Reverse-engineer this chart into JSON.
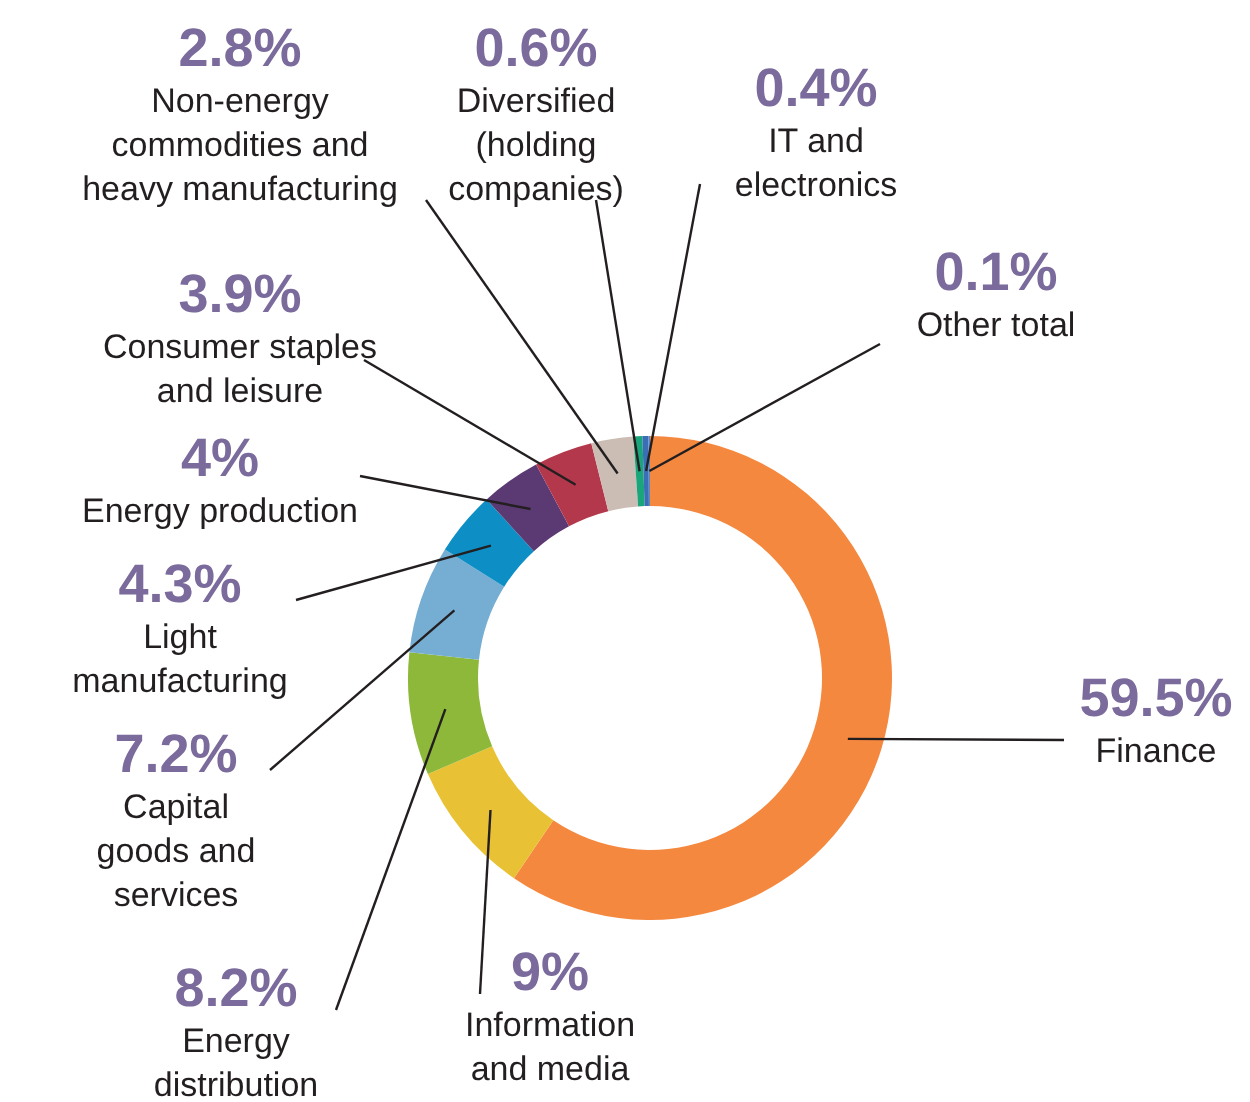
{
  "chart_data": {
    "type": "donut",
    "categories": [
      "Finance",
      "Information and media",
      "Energy distribution",
      "Capital goods and services",
      "Light manufacturing",
      "Energy production",
      "Consumer staples and leisure",
      "Non-energy commodities and heavy manufacturing",
      "Diversified (holding companies)",
      "IT and electronics",
      "Other total"
    ],
    "values": [
      59.5,
      9,
      8.2,
      7.2,
      4.3,
      4,
      3.9,
      2.8,
      0.6,
      0.4,
      0.1
    ],
    "value_labels": [
      "59.5%",
      "9%",
      "8.2%",
      "7.2%",
      "4.3%",
      "4%",
      "3.9%",
      "2.8%",
      "0.6%",
      "0.4%",
      "0.1%"
    ],
    "colors": [
      "#f5883f",
      "#e8c234",
      "#8db83a",
      "#76aed3",
      "#0d8fc6",
      "#5b3a73",
      "#b3384c",
      "#cbbdb3",
      "#1aa57a",
      "#3a6fb5",
      "#5b87c5"
    ]
  }
}
